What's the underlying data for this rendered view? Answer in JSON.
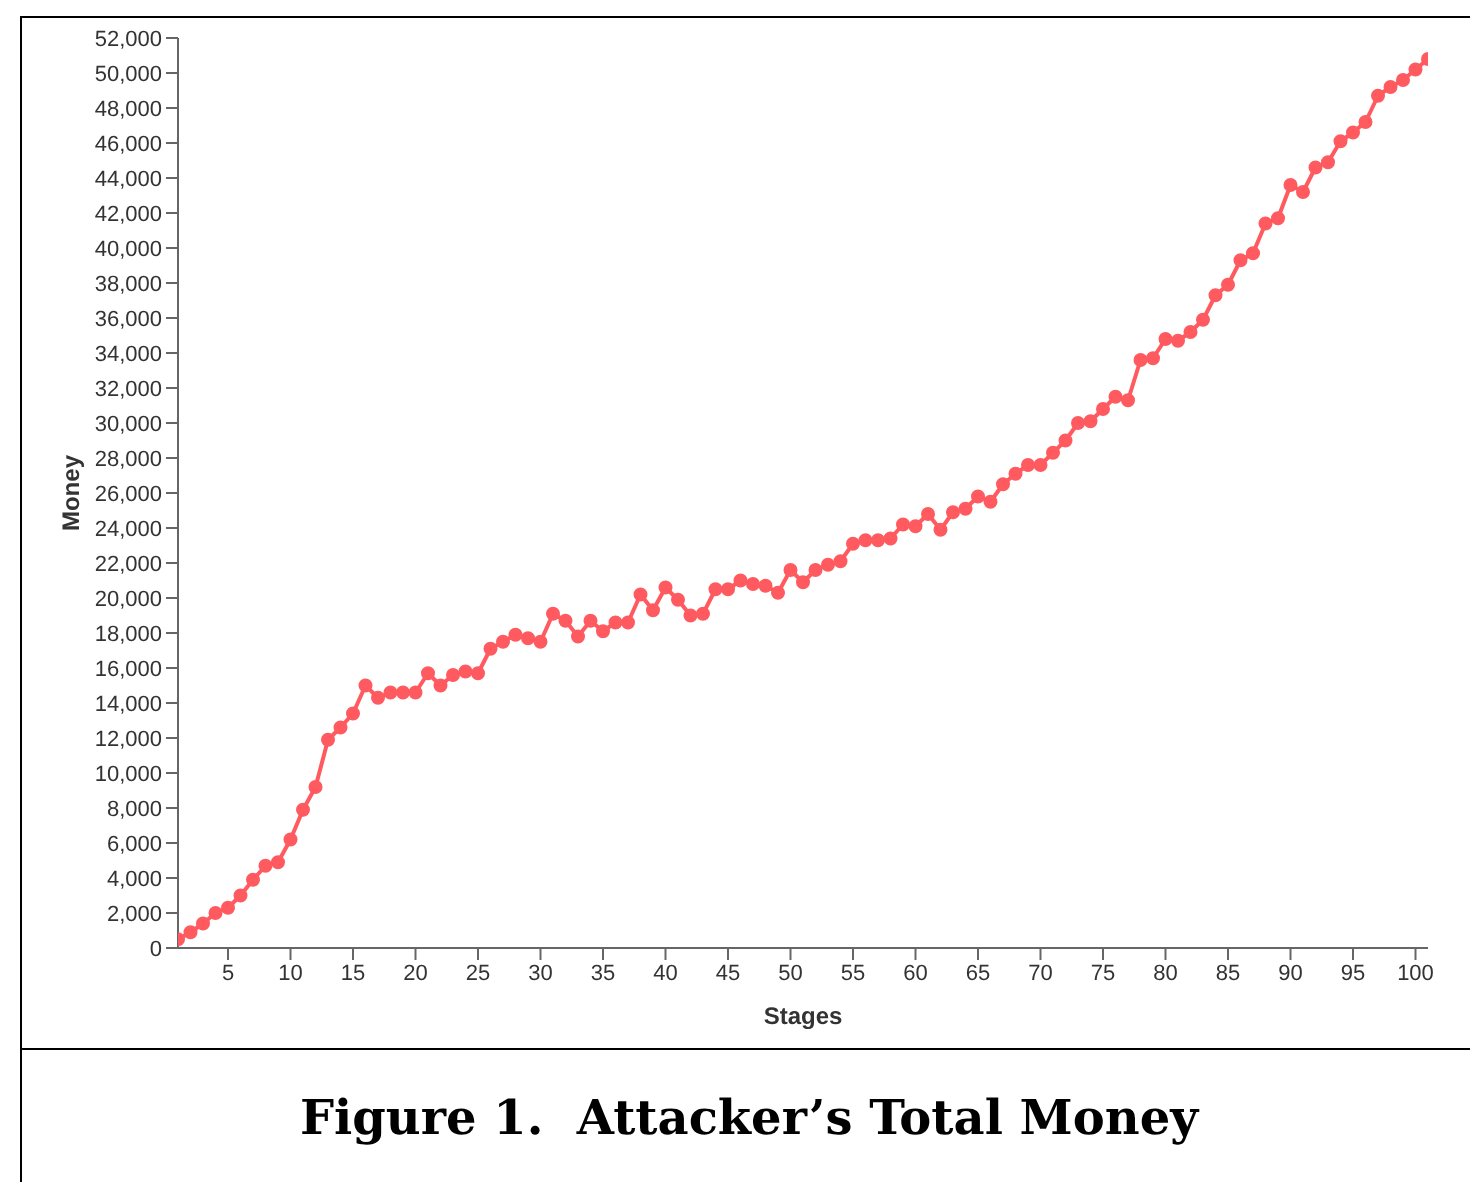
{
  "chart_data": {
    "type": "line",
    "title": "Figure 1.  Attacker’s Total Money",
    "xlabel": "Stages",
    "ylabel": "Money",
    "x": [
      1,
      2,
      3,
      4,
      5,
      6,
      7,
      8,
      9,
      10,
      11,
      12,
      13,
      14,
      15,
      16,
      17,
      18,
      19,
      20,
      21,
      22,
      23,
      24,
      25,
      26,
      27,
      28,
      29,
      30,
      31,
      32,
      33,
      34,
      35,
      36,
      37,
      38,
      39,
      40,
      41,
      42,
      43,
      44,
      45,
      46,
      47,
      48,
      49,
      50,
      51,
      52,
      53,
      54,
      55,
      56,
      57,
      58,
      59,
      60,
      61,
      62,
      63,
      64,
      65,
      66,
      67,
      68,
      69,
      70,
      71,
      72,
      73,
      74,
      75,
      76,
      77,
      78,
      79,
      80,
      81,
      82,
      83,
      84,
      85,
      86,
      87,
      88,
      89,
      90,
      91,
      92,
      93,
      94,
      95,
      96,
      97,
      98,
      99,
      100,
      101
    ],
    "series": [
      {
        "color": "#ff5a5f",
        "values": [
          500,
          900,
          1400,
          2000,
          2300,
          3000,
          3900,
          4700,
          4900,
          6200,
          7900,
          9200,
          11900,
          12600,
          13400,
          15000,
          14300,
          14600,
          14600,
          14600,
          15700,
          15000,
          15600,
          15800,
          15700,
          17100,
          17500,
          17900,
          17700,
          17500,
          19100,
          18700,
          17800,
          18700,
          18100,
          18600,
          18600,
          20200,
          19300,
          20600,
          19900,
          19000,
          19100,
          20500,
          20500,
          21000,
          20800,
          20700,
          20300,
          21600,
          20900,
          21600,
          21900,
          22100,
          23100,
          23300,
          23300,
          23400,
          24200,
          24100,
          24800,
          23900,
          24900,
          25100,
          25800,
          25500,
          26500,
          27100,
          27600,
          27600,
          28300,
          29000,
          30000,
          30100,
          30800,
          31500,
          31300,
          33600,
          33700,
          34800,
          34700,
          35200,
          35900,
          37300,
          37900,
          39300,
          39700,
          41400,
          41700,
          43600,
          43200,
          44600,
          44900,
          46100,
          46600,
          47200,
          48700,
          49200,
          49600,
          50200,
          50800
        ]
      }
    ],
    "xlim": [
      1,
      101
    ],
    "xticks": [
      5,
      10,
      15,
      20,
      25,
      30,
      35,
      40,
      45,
      50,
      55,
      60,
      65,
      70,
      75,
      80,
      85,
      90,
      95,
      100
    ],
    "ylim": [
      0,
      52000
    ],
    "yticks": [
      {
        "value": 0,
        "label": "0"
      },
      {
        "value": 2000,
        "label": "2,000"
      },
      {
        "value": 4000,
        "label": "4,000"
      },
      {
        "value": 6000,
        "label": "6,000"
      },
      {
        "value": 8000,
        "label": "8,000"
      },
      {
        "value": 10000,
        "label": "10,000"
      },
      {
        "value": 12000,
        "label": "12,000"
      },
      {
        "value": 14000,
        "label": "14,000"
      },
      {
        "value": 16000,
        "label": "16,000"
      },
      {
        "value": 18000,
        "label": "18,000"
      },
      {
        "value": 20000,
        "label": "20,000"
      },
      {
        "value": 22000,
        "label": "22,000"
      },
      {
        "value": 24000,
        "label": "24,000"
      },
      {
        "value": 26000,
        "label": "26,000"
      },
      {
        "value": 28000,
        "label": "28,000"
      },
      {
        "value": 30000,
        "label": "30,000"
      },
      {
        "value": 32000,
        "label": "32,000"
      },
      {
        "value": 34000,
        "label": "34,000"
      },
      {
        "value": 36000,
        "label": "36,000"
      },
      {
        "value": 38000,
        "label": "38,000"
      },
      {
        "value": 40000,
        "label": "40,000"
      },
      {
        "value": 42000,
        "label": "42,000"
      },
      {
        "value": 44000,
        "label": "44,000"
      },
      {
        "value": 46000,
        "label": "46,000"
      },
      {
        "value": 48000,
        "label": "48,000"
      },
      {
        "value": 50000,
        "label": "50,000"
      },
      {
        "value": 52000,
        "label": "52,000"
      }
    ],
    "marker": "circle",
    "line_style": "solid",
    "grid": false,
    "legend": false
  }
}
